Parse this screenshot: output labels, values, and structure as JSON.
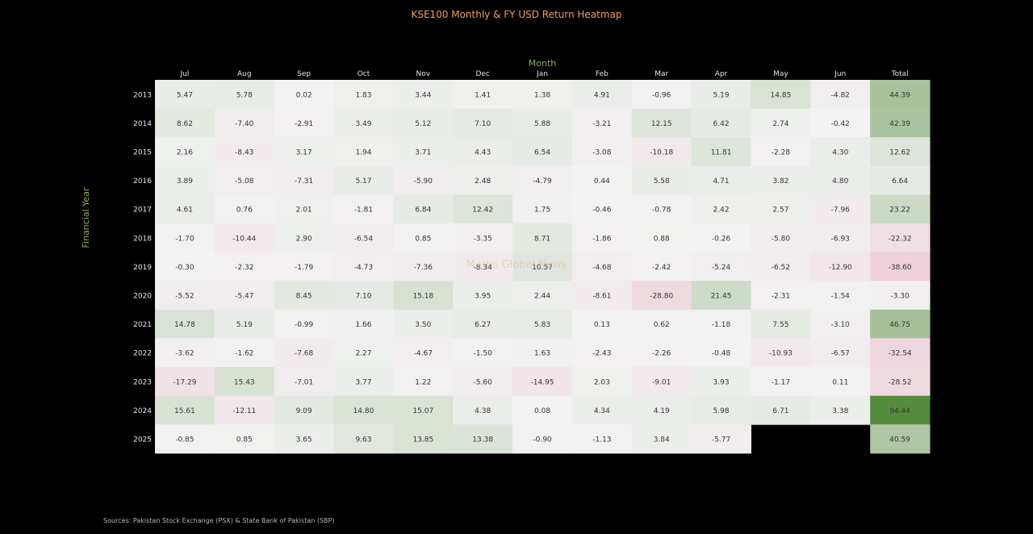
{
  "title": "KSE100 Monthly & FY USD Return Heatmap",
  "x_axis_label": "Month",
  "y_axis_label": "Financial Year",
  "watermark": "Mettis Global News",
  "source": "Sources: Pakistan Stock Exchange (PSX) & State Bank of Pakistan (SBP)",
  "colors": {
    "positive": "#548b3c",
    "negative": "#e8a2b8",
    "neutral": "#f2f2f2",
    "background": "#000000",
    "title": "#f0a050",
    "axis_label": "#8cb060"
  },
  "chart_data": {
    "type": "heatmap",
    "columns": [
      "Jul",
      "Aug",
      "Sep",
      "Oct",
      "Nov",
      "Dec",
      "Jan",
      "Feb",
      "Mar",
      "Apr",
      "May",
      "Jun",
      "Total"
    ],
    "rows": [
      "2013",
      "2014",
      "2015",
      "2016",
      "2017",
      "2018",
      "2019",
      "2020",
      "2021",
      "2022",
      "2023",
      "2024",
      "2025"
    ],
    "values": [
      [
        5.47,
        5.78,
        0.02,
        1.83,
        3.44,
        1.41,
        1.38,
        4.91,
        -0.96,
        5.19,
        14.85,
        -4.82,
        44.39
      ],
      [
        8.62,
        -7.4,
        -2.91,
        3.49,
        5.12,
        7.1,
        5.88,
        -3.21,
        12.15,
        6.42,
        2.74,
        -0.42,
        42.39
      ],
      [
        2.16,
        -8.43,
        3.17,
        1.94,
        3.71,
        4.43,
        6.54,
        -3.08,
        -10.18,
        11.81,
        -2.28,
        4.3,
        12.62
      ],
      [
        3.89,
        -5.08,
        -7.31,
        5.17,
        -5.9,
        2.48,
        -4.79,
        0.44,
        5.58,
        4.71,
        3.82,
        4.8,
        6.64
      ],
      [
        4.61,
        0.76,
        2.01,
        -1.81,
        6.84,
        12.42,
        1.75,
        -0.46,
        -0.78,
        2.42,
        2.57,
        -7.96,
        23.22
      ],
      [
        -1.7,
        -10.44,
        2.9,
        -6.54,
        0.85,
        -3.35,
        8.71,
        -1.86,
        0.88,
        -0.26,
        -5.8,
        -6.93,
        -22.32
      ],
      [
        -0.3,
        -2.32,
        -1.79,
        -4.73,
        -7.36,
        -8.34,
        10.57,
        -4.68,
        -2.42,
        -5.24,
        -6.52,
        -12.9,
        -38.6
      ],
      [
        -5.52,
        -5.47,
        8.45,
        7.1,
        15.18,
        3.95,
        2.44,
        -8.61,
        -28.8,
        21.45,
        -2.31,
        -1.54,
        -3.3
      ],
      [
        14.78,
        5.19,
        -0.99,
        1.66,
        3.5,
        6.27,
        5.83,
        0.13,
        0.62,
        -1.18,
        7.55,
        -3.1,
        46.75
      ],
      [
        -3.62,
        -1.62,
        -7.68,
        2.27,
        -4.67,
        -1.5,
        1.63,
        -2.43,
        -2.26,
        -0.48,
        -10.93,
        -6.57,
        -32.54
      ],
      [
        -17.29,
        15.43,
        -7.01,
        3.77,
        1.22,
        -5.6,
        -14.95,
        2.03,
        -9.01,
        3.93,
        -1.17,
        0.11,
        -28.52
      ],
      [
        15.61,
        -12.11,
        9.09,
        14.8,
        15.07,
        4.38,
        0.08,
        4.34,
        4.19,
        5.98,
        6.71,
        3.38,
        94.44
      ],
      [
        -0.85,
        0.85,
        3.65,
        9.63,
        13.85,
        13.38,
        -0.9,
        -1.13,
        3.84,
        -5.77,
        null,
        null,
        40.59
      ]
    ],
    "color_scale": {
      "min": -94.44,
      "center": 0,
      "max": 94.44
    },
    "grid": false,
    "legend": "none"
  }
}
